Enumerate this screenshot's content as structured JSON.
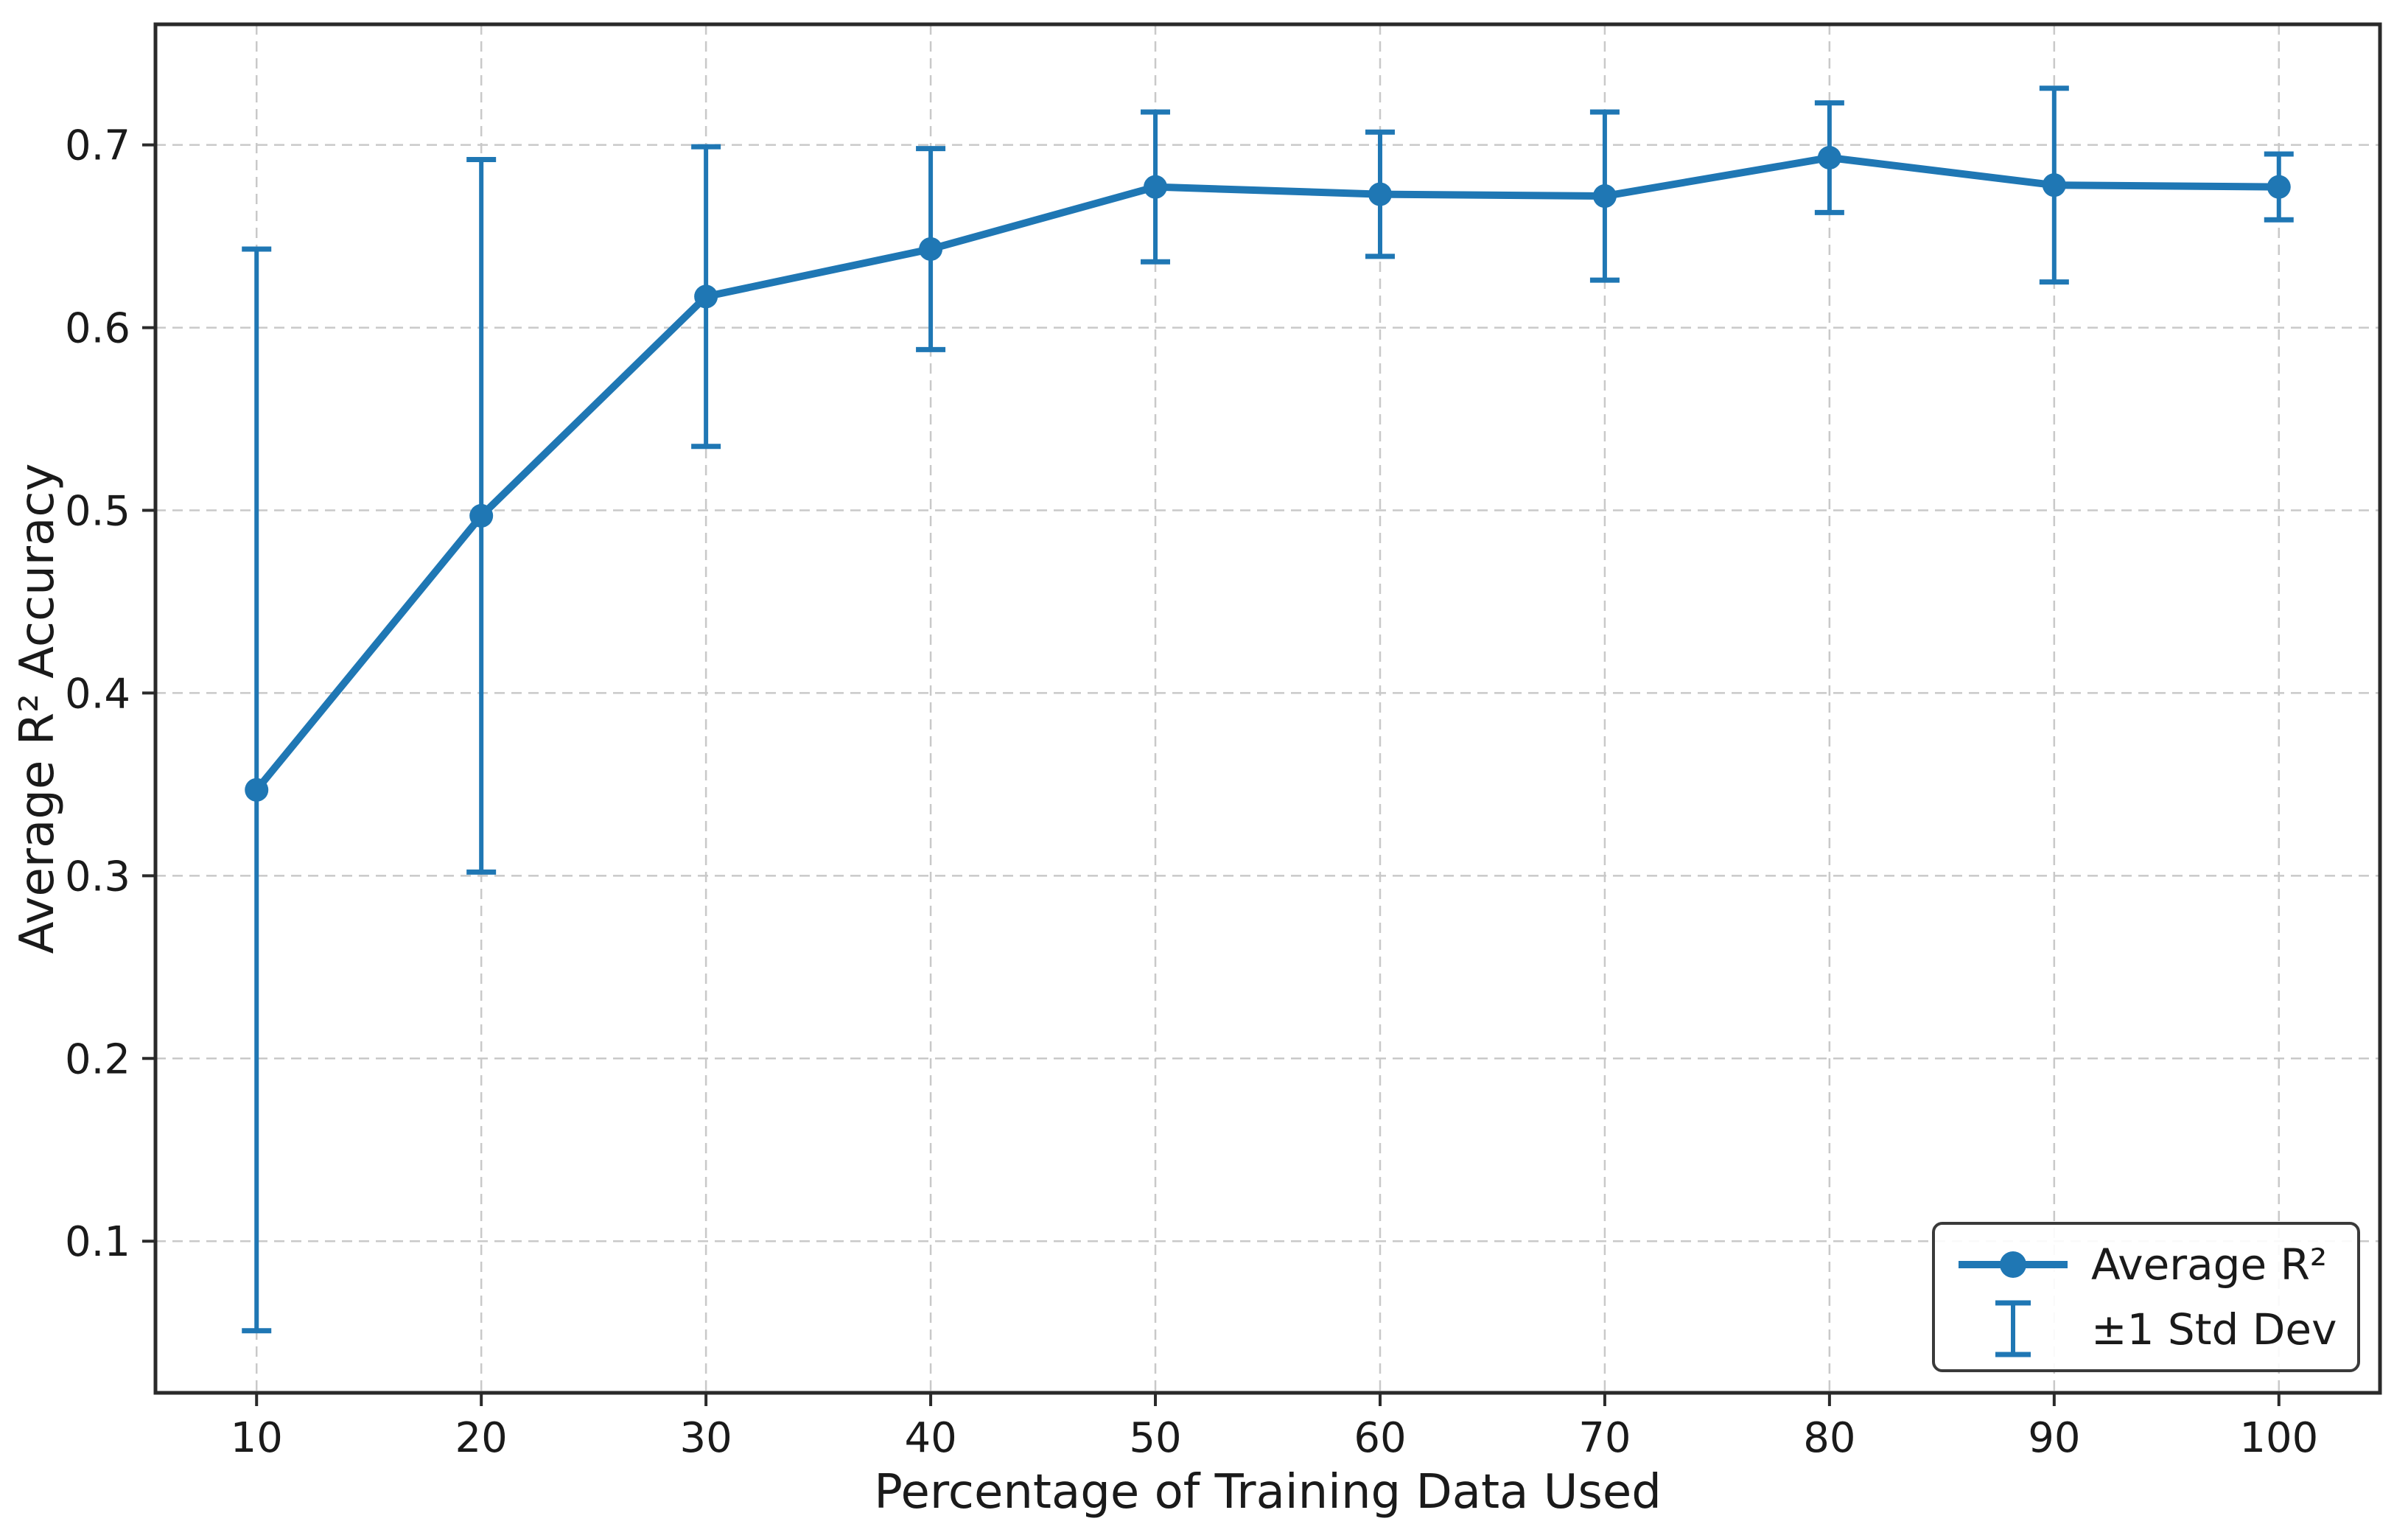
{
  "figure": {
    "background": "#ffffff",
    "accent_color": "#1f77b4",
    "grid_color": "#c9c9c9",
    "spine_color": "#2a2a2a",
    "text_color": "#1a1a1a",
    "legend_border_color": "#3a3a3a"
  },
  "chart_data": {
    "type": "line",
    "title": "",
    "xlabel": "Percentage of Training Data Used",
    "ylabel": "Average R² Accuracy",
    "x": [
      10,
      20,
      30,
      40,
      50,
      60,
      70,
      80,
      90,
      100
    ],
    "series": [
      {
        "name": "Average R²",
        "values": [
          0.347,
          0.497,
          0.617,
          0.643,
          0.677,
          0.673,
          0.672,
          0.693,
          0.678,
          0.677
        ],
        "std": [
          0.296,
          0.195,
          0.082,
          0.055,
          0.041,
          0.034,
          0.046,
          0.03,
          0.053,
          0.018
        ]
      }
    ],
    "error_bar_upper": [
      0.643,
      0.692,
      0.699,
      0.698,
      0.718,
      0.707,
      0.718,
      0.723,
      0.731,
      0.695
    ],
    "error_bar_lower": [
      0.051,
      0.302,
      0.535,
      0.588,
      0.636,
      0.639,
      0.626,
      0.663,
      0.625,
      0.659
    ],
    "x_ticks": [
      10,
      20,
      30,
      40,
      50,
      60,
      70,
      80,
      90,
      100
    ],
    "x_tick_labels": [
      "10",
      "20",
      "30",
      "40",
      "50",
      "60",
      "70",
      "80",
      "90",
      "100"
    ],
    "y_ticks": [
      0.1,
      0.2,
      0.3,
      0.4,
      0.5,
      0.6,
      0.7
    ],
    "y_tick_labels": [
      "0.1",
      "0.2",
      "0.3",
      "0.4",
      "0.5",
      "0.6",
      "0.7"
    ],
    "xlim": [
      5.5,
      104.5
    ],
    "ylim": [
      0.017,
      0.766
    ],
    "grid": true,
    "grid_style": "dashed",
    "legend_position": "lower right",
    "legend": {
      "series_label": "Average R²",
      "error_label": "±1 Std Dev"
    }
  }
}
